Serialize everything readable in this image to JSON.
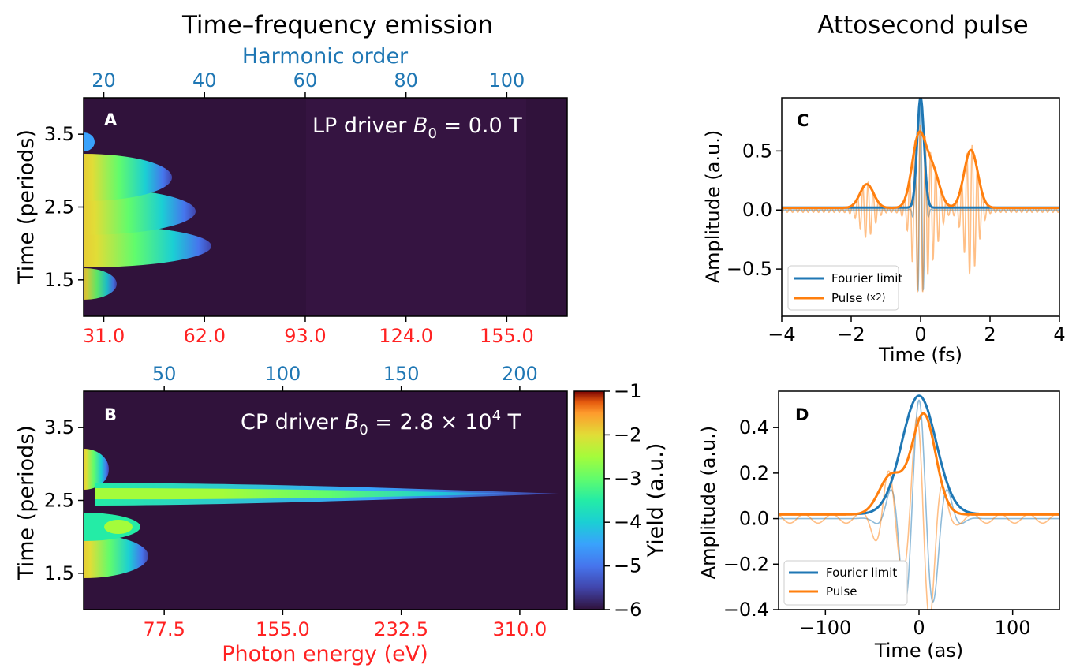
{
  "figure": {
    "left_heading": "Time–frequency emission",
    "right_heading": "Attosecond pulse"
  },
  "colors": {
    "blue": "#1f77b4",
    "orange": "#ff7f0e",
    "harmonic_axis": "#1f77b4",
    "energy_axis": "#ff2222",
    "map_background": "#30123b"
  },
  "chart_data": [
    {
      "panel": "A",
      "type": "heatmap",
      "annotation": "LP driver B₀ = 0.0 T",
      "ylabel": "Time (periods)",
      "yticks": [
        "1.5",
        "2.5",
        "3.5"
      ],
      "ylim": [
        1.0,
        4.0
      ],
      "top_axis_label": "Harmonic order",
      "top_ticks": [
        "20",
        "40",
        "60",
        "80",
        "100"
      ],
      "top_xlim": [
        16.0,
        112.0
      ],
      "bottom_ticks": [
        "31.0",
        "62.0",
        "93.0",
        "124.0",
        "155.0"
      ],
      "bottom_xlim": [
        24.8,
        173.6
      ],
      "colorbar_range": [
        -6,
        -1
      ],
      "emission_blobs_time_periods": [
        1.5,
        1.95,
        2.4,
        2.9,
        3.4
      ],
      "max_extent_harmonic_order": 42
    },
    {
      "panel": "B",
      "type": "heatmap",
      "annotation": "CP driver B₀ = 2.8 × 10⁴ T",
      "ylabel": "Time (periods)",
      "yticks": [
        "1.5",
        "2.5",
        "3.5"
      ],
      "ylim": [
        1.0,
        4.0
      ],
      "top_ticks": [
        "50",
        "100",
        "150",
        "200"
      ],
      "top_xlim": [
        16.0,
        220.0
      ],
      "xlabel": "Photon energy (eV)",
      "bottom_ticks": [
        "77.5",
        "155.0",
        "232.5",
        "310.0"
      ],
      "bottom_xlim": [
        24.8,
        341.0
      ],
      "colorbar_label": "Yield (a.u.)",
      "colorbar_ticks": [
        "−1",
        "−2",
        "−3",
        "−4",
        "−5",
        "−6"
      ],
      "colorbar_range": [
        -6,
        -1
      ],
      "main_burst_time_periods": 2.58,
      "main_burst_cutoff_eV": 328
    },
    {
      "panel": "C",
      "type": "line",
      "xlabel": "Time (fs)",
      "ylabel": "Amplitude (a.u.)",
      "xlim": [
        -4,
        4
      ],
      "ylim": [
        -0.9,
        0.95
      ],
      "xticks": [
        "−4",
        "−2",
        "0",
        "2",
        "4"
      ],
      "yticks": [
        "−0.5",
        "0.0",
        "0.5"
      ],
      "legend_position": "lower-left",
      "series": [
        {
          "name": "Fourier limit",
          "color": "#1f77b4",
          "envelope_peak": 0.93,
          "peak_time": 0.0,
          "field_min": -0.72
        },
        {
          "name": "Pulse",
          "legend_suffix": "(x2)",
          "color": "#ff7f0e",
          "envelope_peaks": [
            [
              -1.55,
              0.2
            ],
            [
              -0.05,
              0.6
            ],
            [
              0.35,
              0.3
            ],
            [
              1.45,
              0.49
            ]
          ],
          "field_min": -0.68
        }
      ]
    },
    {
      "panel": "D",
      "type": "line",
      "xlabel": "Time (as)",
      "ylabel": "Amplitude (a.u.)",
      "xlim": [
        -150,
        150
      ],
      "ylim": [
        -0.4,
        0.56
      ],
      "xticks": [
        "−100",
        "0",
        "100"
      ],
      "yticks": [
        "−0.4",
        "−0.2",
        "0.0",
        "0.2",
        "0.4"
      ],
      "legend_position": "lower-left",
      "series": [
        {
          "name": "Fourier limit",
          "color": "#1f77b4",
          "envelope_peak": 0.52,
          "peak_time": 0,
          "field_min": -0.35
        },
        {
          "name": "Pulse",
          "color": "#ff7f0e",
          "envelope_peaks": [
            [
              -30,
              0.17
            ],
            [
              5,
              0.44
            ]
          ],
          "field_min": -0.37
        }
      ]
    }
  ]
}
